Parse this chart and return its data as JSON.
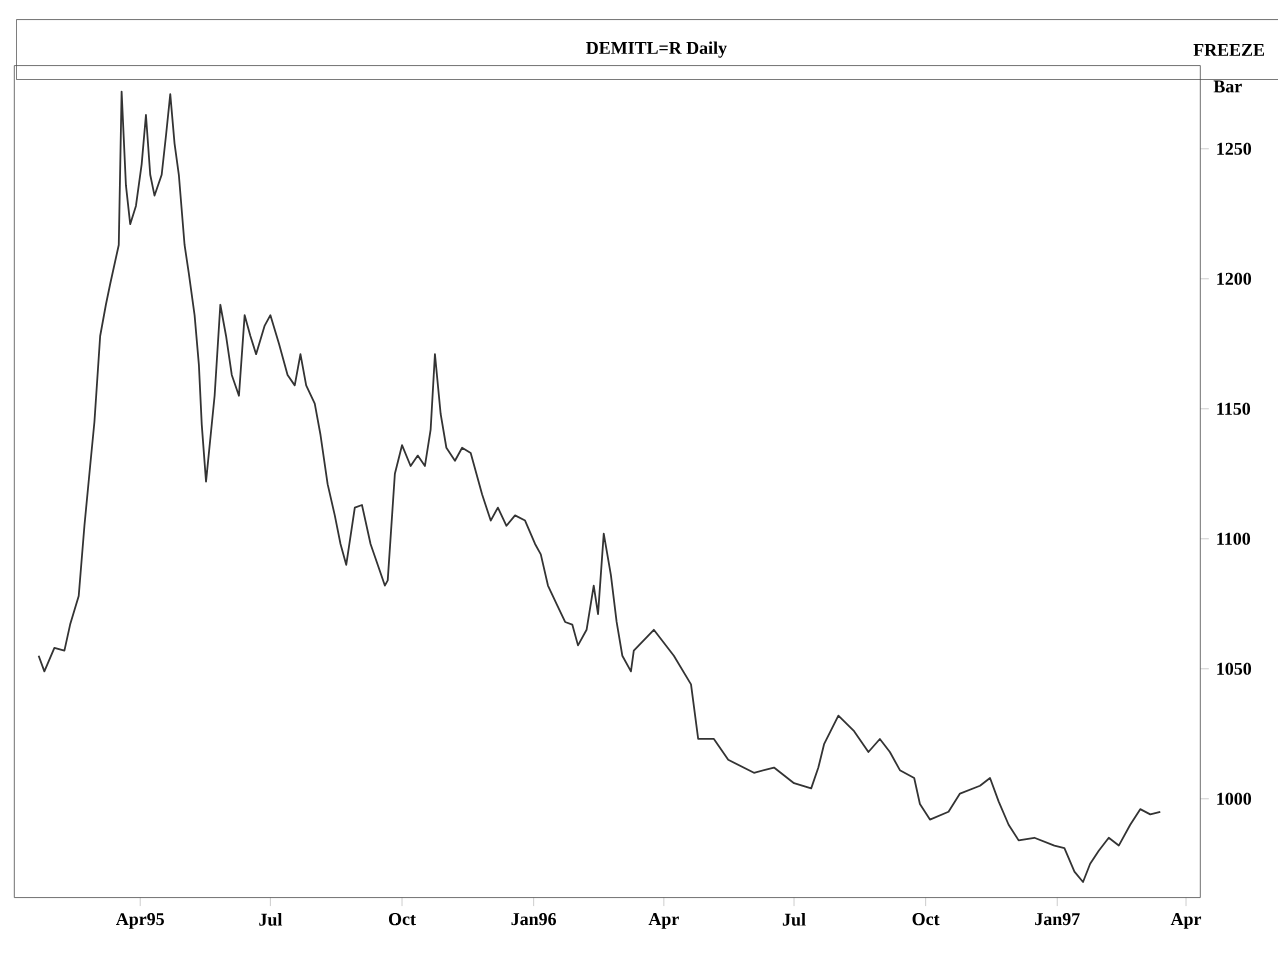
{
  "chart_data": {
    "type": "line",
    "title": "DEMITL=R Daily",
    "ylabel": "Bar",
    "annotations": [
      "FREEZE"
    ],
    "x": [
      "1995-01-20",
      "1995-01-24",
      "1995-01-31",
      "1995-02-07",
      "1995-02-11",
      "1995-02-17",
      "1995-02-21",
      "1995-02-25",
      "1995-02-28",
      "1995-03-04",
      "1995-03-08",
      "1995-03-11",
      "1995-03-17",
      "1995-03-19",
      "1995-03-22",
      "1995-03-25",
      "1995-03-29",
      "1995-04-02",
      "1995-04-05",
      "1995-04-08",
      "1995-04-11",
      "1995-04-16",
      "1995-04-19",
      "1995-04-22",
      "1995-04-25",
      "1995-04-28",
      "1995-05-02",
      "1995-05-05",
      "1995-05-09",
      "1995-05-12",
      "1995-05-14",
      "1995-05-17",
      "1995-05-23",
      "1995-05-27",
      "1995-05-31",
      "1995-06-04",
      "1995-06-09",
      "1995-06-13",
      "1995-06-17",
      "1995-06-21",
      "1995-06-27",
      "1995-07-01",
      "1995-07-07",
      "1995-07-13",
      "1995-07-18",
      "1995-07-22",
      "1995-07-26",
      "1995-08-01",
      "1995-08-05",
      "1995-08-10",
      "1995-08-15",
      "1995-08-19",
      "1995-08-23",
      "1995-08-29",
      "1995-09-03",
      "1995-09-09",
      "1995-09-14",
      "1995-09-19",
      "1995-09-21",
      "1995-09-26",
      "1995-10-01",
      "1995-10-07",
      "1995-10-12",
      "1995-10-17",
      "1995-10-21",
      "1995-10-24",
      "1995-10-28",
      "1995-11-01",
      "1995-11-07",
      "1995-11-12",
      "1995-11-18",
      "1995-11-26",
      "1995-12-02",
      "1995-12-07",
      "1995-12-13",
      "1995-12-19",
      "1995-12-26",
      "1996-01-02",
      "1996-01-06",
      "1996-01-11",
      "1996-01-17",
      "1996-01-23",
      "1996-01-28",
      "1996-02-01",
      "1996-02-07",
      "1996-02-12",
      "1996-02-15",
      "1996-02-19",
      "1996-02-24",
      "1996-02-28",
      "1996-03-03",
      "1996-03-09",
      "1996-03-11",
      "1996-03-25",
      "1996-04-08",
      "1996-04-20",
      "1996-04-25",
      "1996-05-06",
      "1996-05-16",
      "1996-06-03",
      "1996-06-17",
      "1996-07-01",
      "1996-07-13",
      "1996-07-18",
      "1996-07-22",
      "1996-08-01",
      "1996-08-12",
      "1996-08-22",
      "1996-08-30",
      "1996-09-06",
      "1996-09-13",
      "1996-09-23",
      "1996-09-27",
      "1996-10-04",
      "1996-10-17",
      "1996-10-25",
      "1996-11-08",
      "1996-11-15",
      "1996-11-21",
      "1996-11-28",
      "1996-12-05",
      "1996-12-16",
      "1996-12-30",
      "1997-01-06",
      "1997-01-13",
      "1997-01-19",
      "1997-01-24",
      "1997-01-30",
      "1997-02-06",
      "1997-02-13",
      "1997-02-21",
      "1997-02-28",
      "1997-03-07",
      "1997-03-14"
    ],
    "series": [
      {
        "color": "#333333",
        "values": [
          1055,
          1049,
          1058,
          1057,
          1067,
          1078,
          1105,
          1128,
          1145,
          1178,
          1190,
          1198,
          1213,
          1272,
          1236,
          1221,
          1228,
          1244,
          1263,
          1240,
          1232,
          1240,
          1255,
          1271,
          1252,
          1240,
          1213,
          1202,
          1186,
          1167,
          1144,
          1122,
          1155,
          1190,
          1178,
          1163,
          1155,
          1186,
          1178,
          1171,
          1182,
          1186,
          1175,
          1163,
          1159,
          1171,
          1159,
          1152,
          1140,
          1121,
          1109,
          1098,
          1090,
          1112,
          1113,
          1098,
          1090,
          1082,
          1084,
          1125,
          1136,
          1128,
          1132,
          1128,
          1142,
          1171,
          1148,
          1135,
          1130,
          1135,
          1133,
          1117,
          1107,
          1112,
          1105,
          1109,
          1107,
          1098,
          1094,
          1082,
          1075,
          1068,
          1067,
          1059,
          1065,
          1082,
          1071,
          1102,
          1086,
          1068,
          1055,
          1049,
          1057,
          1065,
          1055,
          1044,
          1023,
          1023,
          1015,
          1010,
          1012,
          1006,
          1004,
          1012,
          1021,
          1032,
          1026,
          1018,
          1023,
          1018,
          1011,
          1008,
          998,
          992,
          995,
          1002,
          1005,
          1008,
          999,
          990,
          984,
          985,
          982,
          981,
          972,
          968,
          975,
          980,
          985,
          982,
          990,
          996,
          994,
          995
        ]
      }
    ],
    "xlim": [
      "1995-01-03",
      "1997-04-11"
    ],
    "xticks": [
      {
        "value": "1995-04-01",
        "label": "Apr95"
      },
      {
        "value": "1995-07-01",
        "label": "Jul"
      },
      {
        "value": "1995-10-01",
        "label": "Oct"
      },
      {
        "value": "1996-01-01",
        "label": "Jan96"
      },
      {
        "value": "1996-04-01",
        "label": "Apr"
      },
      {
        "value": "1996-07-01",
        "label": "Jul"
      },
      {
        "value": "1996-10-01",
        "label": "Oct"
      },
      {
        "value": "1997-01-01",
        "label": "Jan97"
      },
      {
        "value": "1997-04-01",
        "label": "Apr"
      }
    ],
    "ylim": [
      962,
      1282
    ],
    "yticks": [
      1000,
      1050,
      1100,
      1150,
      1200,
      1250
    ]
  }
}
